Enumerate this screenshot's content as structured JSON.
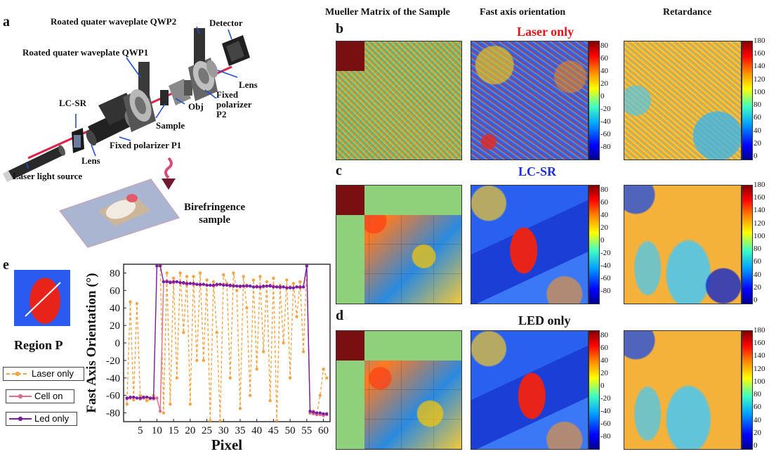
{
  "panels": {
    "a": "a",
    "b": "b",
    "c": "c",
    "d": "d",
    "e": "e"
  },
  "setup": {
    "qwp2": "Roated quater waveplate QWP2",
    "detector": "Detector",
    "qwp1": "Roated quater waveplate QWP1",
    "lens_right": "Lens",
    "fixed_p2_line1": "Fixed",
    "fixed_p2_line2": "polarizer",
    "fixed_p2_line3": "P2",
    "obj": "Obj",
    "lcsr": "LC-SR",
    "sample": "Sample",
    "fixed_p1": "Fixed polarizer P1",
    "lens_left": "Lens",
    "laser_source": "Laser light source",
    "birefringence_line1": "Birefringence",
    "birefringence_line2": "sample"
  },
  "columns": {
    "mueller": "Mueller Matrix of the Sample",
    "fast_axis": "Fast axis orientation",
    "retardance": "Retardance"
  },
  "rows": {
    "b": {
      "title": "Laser only",
      "color": "#e8141a"
    },
    "c": {
      "title": "LC-SR",
      "color": "#1a2fd6"
    },
    "d": {
      "title": "LED only",
      "color": "#111111"
    }
  },
  "colorbars": {
    "fast_axis_ticks": [
      "80",
      "60",
      "40",
      "20",
      "0",
      "-20",
      "-40",
      "-60",
      "-80"
    ],
    "retardance_ticks": [
      "180",
      "160",
      "140",
      "120",
      "100",
      "80",
      "60",
      "40",
      "20",
      "0"
    ]
  },
  "region": {
    "label": "Region P"
  },
  "legend": {
    "laser": "Laser only",
    "cell": "Cell on",
    "led": "Led only"
  },
  "chart_data": {
    "type": "line",
    "title": "",
    "xlabel": "Pixel",
    "ylabel": "Fast Axis Orientation (°)",
    "xlim": [
      0,
      62
    ],
    "ylim": [
      -90,
      90
    ],
    "xticks": [
      5,
      10,
      15,
      20,
      25,
      30,
      35,
      40,
      45,
      50,
      55,
      60
    ],
    "yticks": [
      -80,
      -60,
      -40,
      -20,
      0,
      20,
      40,
      60,
      80
    ],
    "series": [
      {
        "name": "Laser only",
        "color": "#f5a445",
        "dashed": true,
        "x": [
          1,
          2,
          3,
          4,
          5,
          6,
          7,
          8,
          9,
          10,
          11,
          12,
          13,
          14,
          15,
          16,
          17,
          18,
          19,
          20,
          21,
          22,
          23,
          24,
          25,
          26,
          27,
          28,
          29,
          30,
          31,
          32,
          33,
          34,
          35,
          36,
          37,
          38,
          39,
          40,
          41,
          42,
          43,
          44,
          45,
          46,
          47,
          48,
          49,
          50,
          51,
          52,
          53,
          54,
          55,
          56,
          57,
          58,
          59,
          60,
          61
        ],
        "y": [
          -70,
          47,
          -65,
          45,
          -60,
          -62,
          -66,
          -64,
          -60,
          88,
          88,
          -80,
          80,
          -70,
          74,
          -40,
          80,
          12,
          76,
          -70,
          76,
          -20,
          80,
          -20,
          72,
          -89,
          70,
          12,
          -89,
          78,
          68,
          -40,
          80,
          60,
          -75,
          76,
          40,
          -60,
          72,
          -30,
          76,
          -10,
          70,
          -66,
          74,
          -89,
          66,
          0,
          72,
          -40,
          68,
          30,
          70,
          -10,
          88,
          -80,
          -78,
          -82,
          -60,
          -30,
          -40
        ]
      },
      {
        "name": "Cell on",
        "color": "#e06b8b",
        "dashed": false,
        "x": [
          1,
          2,
          3,
          4,
          5,
          6,
          7,
          8,
          9,
          10,
          11,
          12,
          13,
          14,
          15,
          16,
          17,
          18,
          19,
          20,
          21,
          22,
          23,
          24,
          25,
          26,
          27,
          28,
          29,
          30,
          31,
          32,
          33,
          34,
          35,
          36,
          37,
          38,
          39,
          40,
          41,
          42,
          43,
          44,
          45,
          46,
          47,
          48,
          49,
          50,
          51,
          52,
          53,
          54,
          55,
          56,
          57,
          58,
          59,
          60,
          61
        ],
        "y": [
          -64,
          -63,
          -62,
          -63,
          -64,
          -63,
          -62,
          -63,
          -64,
          -63,
          -78,
          70,
          71,
          70,
          69,
          70,
          69,
          68,
          67,
          68,
          67,
          67,
          66,
          67,
          66,
          66,
          65,
          66,
          67,
          67,
          66,
          65,
          66,
          65,
          64,
          65,
          66,
          65,
          64,
          65,
          64,
          64,
          65,
          66,
          65,
          64,
          63,
          64,
          63,
          64,
          63,
          64,
          63,
          64,
          88,
          -80,
          -81,
          -82,
          -82,
          -83,
          -82
        ]
      },
      {
        "name": "Led only",
        "color": "#7a1fa2",
        "dashed": false,
        "x": [
          1,
          2,
          3,
          4,
          5,
          6,
          7,
          8,
          9,
          10,
          11,
          12,
          13,
          14,
          15,
          16,
          17,
          18,
          19,
          20,
          21,
          22,
          23,
          24,
          25,
          26,
          27,
          28,
          29,
          30,
          31,
          32,
          33,
          34,
          35,
          36,
          37,
          38,
          39,
          40,
          41,
          42,
          43,
          44,
          45,
          46,
          47,
          48,
          49,
          50,
          51,
          52,
          53,
          54,
          55,
          56,
          57,
          58,
          59,
          60,
          61
        ],
        "y": [
          -63,
          -62,
          -62,
          -63,
          -63,
          -62,
          -62,
          -63,
          -63,
          88,
          88,
          70,
          70,
          69,
          70,
          70,
          69,
          69,
          68,
          68,
          68,
          67,
          67,
          67,
          66,
          66,
          66,
          67,
          67,
          66,
          66,
          66,
          65,
          65,
          65,
          65,
          65,
          65,
          64,
          64,
          64,
          65,
          65,
          65,
          64,
          64,
          64,
          64,
          63,
          63,
          63,
          64,
          64,
          64,
          88,
          -78,
          -79,
          -80,
          -80,
          -81,
          -81
        ]
      }
    ]
  }
}
